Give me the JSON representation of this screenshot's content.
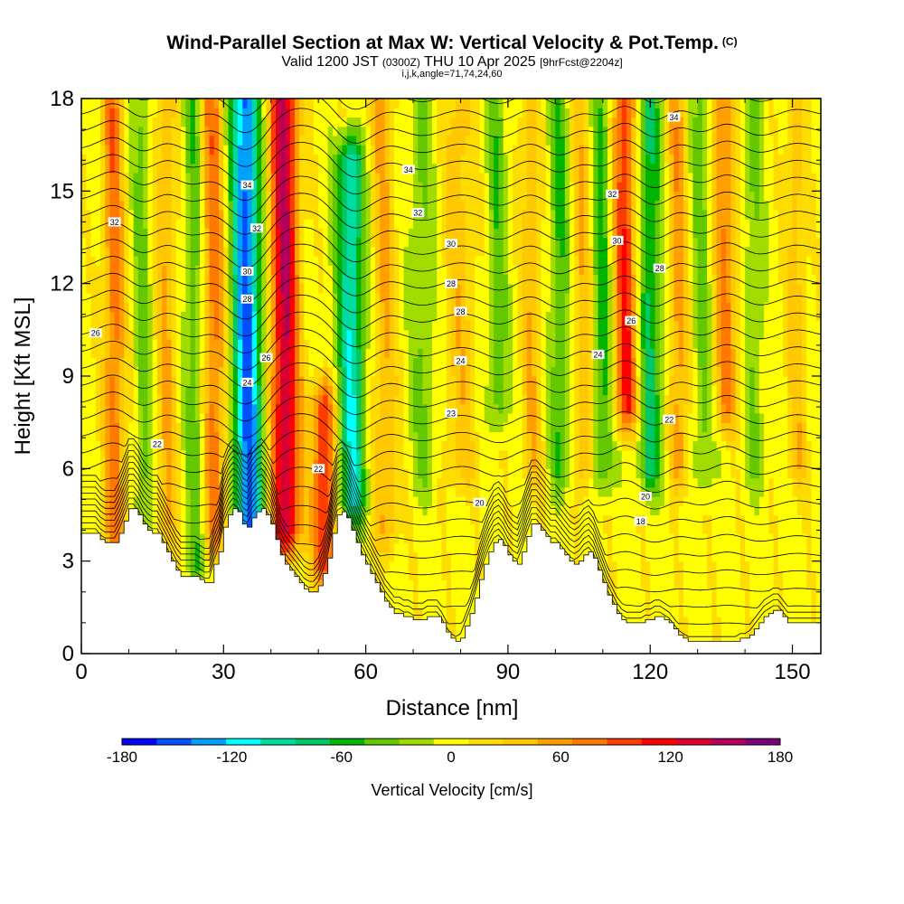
{
  "chart_data": {
    "type": "heatmap",
    "title": "Wind-Parallel Section at Max W: Vertical Velocity & Pot.Temp.",
    "title_mark": "(C)",
    "subtitle": {
      "valid_prefix": "Valid 1200 JST",
      "utc": "(0300Z)",
      "date": "THU 10 Apr 2025",
      "forecast": "[9hrFcst@2204z]"
    },
    "subtitle2": "i,j,k,angle=71,74,24,60",
    "xlabel": "Distance [nm]",
    "ylabel": "Height [Kft MSL]",
    "xlim": [
      0,
      156
    ],
    "ylim": [
      0,
      18
    ],
    "x_ticks": [
      "0",
      "30",
      "60",
      "90",
      "120",
      "150"
    ],
    "y_ticks": [
      "0",
      "3",
      "6",
      "9",
      "12",
      "15",
      "18"
    ],
    "colorbar": {
      "label": "Vertical Velocity [cm/s]",
      "range": [
        -180,
        180
      ],
      "step": 20,
      "tick_labels": [
        "-180",
        "-120",
        "-60",
        "0",
        "60",
        "120",
        "180"
      ],
      "colors": [
        "#0000ff",
        "#0050ff",
        "#00a0ff",
        "#00ffff",
        "#00dca0",
        "#00c864",
        "#00b400",
        "#64c800",
        "#a0dc00",
        "#ffff00",
        "#ffdc00",
        "#ffc800",
        "#ffa000",
        "#ff7800",
        "#ff3c00",
        "#ff0000",
        "#dc0032",
        "#b4005a",
        "#780078"
      ]
    },
    "terrain_heights_kft": [
      3.9,
      3.9,
      3.9,
      3.9,
      3.7,
      3.6,
      3.6,
      3.6,
      3.9,
      4.3,
      4.7,
      4.7,
      4.5,
      4.2,
      4.0,
      3.9,
      3.9,
      3.6,
      3.3,
      3.0,
      2.7,
      2.5,
      2.5,
      2.5,
      2.5,
      2.4,
      2.3,
      2.3,
      2.9,
      3.3,
      4.1,
      4.5,
      4.7,
      4.6,
      4.2,
      4.1,
      4.4,
      4.6,
      4.7,
      4.5,
      4.2,
      3.7,
      3.2,
      2.9,
      2.7,
      2.5,
      2.3,
      2.1,
      2.0,
      2.0,
      2.2,
      2.6,
      3.1,
      3.9,
      4.5,
      4.6,
      4.4,
      4.0,
      3.6,
      3.2,
      2.9,
      2.6,
      2.3,
      2.0,
      1.7,
      1.5,
      1.3,
      1.3,
      1.2,
      1.2,
      1.1,
      1.1,
      1.1,
      1.2,
      1.2,
      1.2,
      1.0,
      0.7,
      0.5,
      0.4,
      0.5,
      0.9,
      1.3,
      1.8,
      2.4,
      2.9,
      3.3,
      3.6,
      3.7,
      3.5,
      3.2,
      3.0,
      2.9,
      3.3,
      3.8,
      4.2,
      4.2,
      4.0,
      3.8,
      3.6,
      3.6,
      3.4,
      3.2,
      3.0,
      2.9,
      3.0,
      3.2,
      3.3,
      3.1,
      2.7,
      2.3,
      1.9,
      1.6,
      1.3,
      1.1,
      1.0,
      1.0,
      1.0,
      1.0,
      1.1,
      1.1,
      1.2,
      1.2,
      1.1,
      1.0,
      0.8,
      0.6,
      0.5,
      0.4,
      0.4,
      0.4,
      0.4,
      0.4,
      0.4,
      0.4,
      0.4,
      0.4,
      0.4,
      0.4,
      0.5,
      0.5,
      0.6,
      0.8,
      1.0,
      1.2,
      1.3,
      1.4,
      1.4,
      1.2,
      1.0,
      1.0,
      1.0,
      1.0,
      1.0,
      1.0,
      1.0,
      1.0
    ],
    "updraft_bands": [
      {
        "x": 7,
        "w": 80,
        "width": 2.2,
        "zlo": 3.5,
        "zhi": 18
      },
      {
        "x": 13,
        "w": -40,
        "width": 1.8,
        "zlo": 4,
        "zhi": 18
      },
      {
        "x": 18,
        "w": 50,
        "width": 2.0,
        "zlo": 4,
        "zhi": 18
      },
      {
        "x": 24,
        "w": -50,
        "width": 2.0,
        "zlo": 3,
        "zhi": 18
      },
      {
        "x": 28,
        "w": 80,
        "width": 2.5,
        "zlo": 4,
        "zhi": 18
      },
      {
        "x": 35,
        "w": -160,
        "width": 3.0,
        "zlo": 4,
        "zhi": 18
      },
      {
        "x": 43,
        "w": 150,
        "width": 3.0,
        "zlo": 4,
        "zhi": 18
      },
      {
        "x": 51,
        "w": 110,
        "width": 2.5,
        "zlo": 3,
        "zhi": 8
      },
      {
        "x": 57,
        "w": -110,
        "width": 2.8,
        "zlo": 5,
        "zhi": 16
      },
      {
        "x": 64,
        "w": 50,
        "width": 2.5,
        "zlo": 4,
        "zhi": 18
      },
      {
        "x": 72,
        "w": -35,
        "width": 2.5,
        "zlo": 6,
        "zhi": 18
      },
      {
        "x": 80,
        "w": 40,
        "width": 3.0,
        "zlo": 6,
        "zhi": 18
      },
      {
        "x": 88,
        "w": -45,
        "width": 2.0,
        "zlo": 8,
        "zhi": 18
      },
      {
        "x": 95,
        "w": 45,
        "width": 2.0,
        "zlo": 6,
        "zhi": 18
      },
      {
        "x": 101,
        "w": -55,
        "width": 2.0,
        "zlo": 6,
        "zhi": 18
      },
      {
        "x": 106,
        "w": 45,
        "width": 2.0,
        "zlo": 6,
        "zhi": 18
      },
      {
        "x": 110,
        "w": -60,
        "width": 2.0,
        "zlo": 6,
        "zhi": 18
      },
      {
        "x": 115,
        "w": 110,
        "width": 2.5,
        "zlo": 8,
        "zhi": 18
      },
      {
        "x": 120,
        "w": -80,
        "width": 2.5,
        "zlo": 6,
        "zhi": 18
      },
      {
        "x": 126,
        "w": 60,
        "width": 2.0,
        "zlo": 6,
        "zhi": 18
      },
      {
        "x": 131,
        "w": -40,
        "width": 2.0,
        "zlo": 6,
        "zhi": 18
      },
      {
        "x": 136,
        "w": 70,
        "width": 2.5,
        "zlo": 8,
        "zhi": 18
      },
      {
        "x": 142,
        "w": -35,
        "width": 2.0,
        "zlo": 6,
        "zhi": 18
      },
      {
        "x": 151,
        "w": 40,
        "width": 2.0,
        "zlo": 6,
        "zhi": 18
      }
    ],
    "theta_labels": [
      {
        "x": 7,
        "z": 14.0,
        "text": "32"
      },
      {
        "x": 3,
        "z": 10.4,
        "text": "26"
      },
      {
        "x": 16,
        "z": 6.8,
        "text": "22"
      },
      {
        "x": 35,
        "z": 15.2,
        "text": "34"
      },
      {
        "x": 37,
        "z": 13.8,
        "text": "32"
      },
      {
        "x": 35,
        "z": 12.4,
        "text": "30"
      },
      {
        "x": 35,
        "z": 11.5,
        "text": "28"
      },
      {
        "x": 39,
        "z": 9.6,
        "text": "26"
      },
      {
        "x": 35,
        "z": 8.8,
        "text": "24"
      },
      {
        "x": 50,
        "z": 6.0,
        "text": "22"
      },
      {
        "x": 69,
        "z": 15.7,
        "text": "34"
      },
      {
        "x": 71,
        "z": 14.3,
        "text": "32"
      },
      {
        "x": 78,
        "z": 13.3,
        "text": "30"
      },
      {
        "x": 78,
        "z": 12.0,
        "text": "28"
      },
      {
        "x": 80,
        "z": 11.1,
        "text": "28"
      },
      {
        "x": 80,
        "z": 9.5,
        "text": "24"
      },
      {
        "x": 78,
        "z": 7.8,
        "text": "23"
      },
      {
        "x": 84,
        "z": 4.9,
        "text": "20"
      },
      {
        "x": 112,
        "z": 14.9,
        "text": "32"
      },
      {
        "x": 113,
        "z": 13.4,
        "text": "30"
      },
      {
        "x": 122,
        "z": 12.5,
        "text": "28"
      },
      {
        "x": 116,
        "z": 10.8,
        "text": "26"
      },
      {
        "x": 109,
        "z": 9.7,
        "text": "24"
      },
      {
        "x": 124,
        "z": 7.6,
        "text": "22"
      },
      {
        "x": 119,
        "z": 5.1,
        "text": "20"
      },
      {
        "x": 118,
        "z": 4.3,
        "text": "18"
      },
      {
        "x": 125,
        "z": 17.4,
        "text": "34"
      }
    ]
  }
}
